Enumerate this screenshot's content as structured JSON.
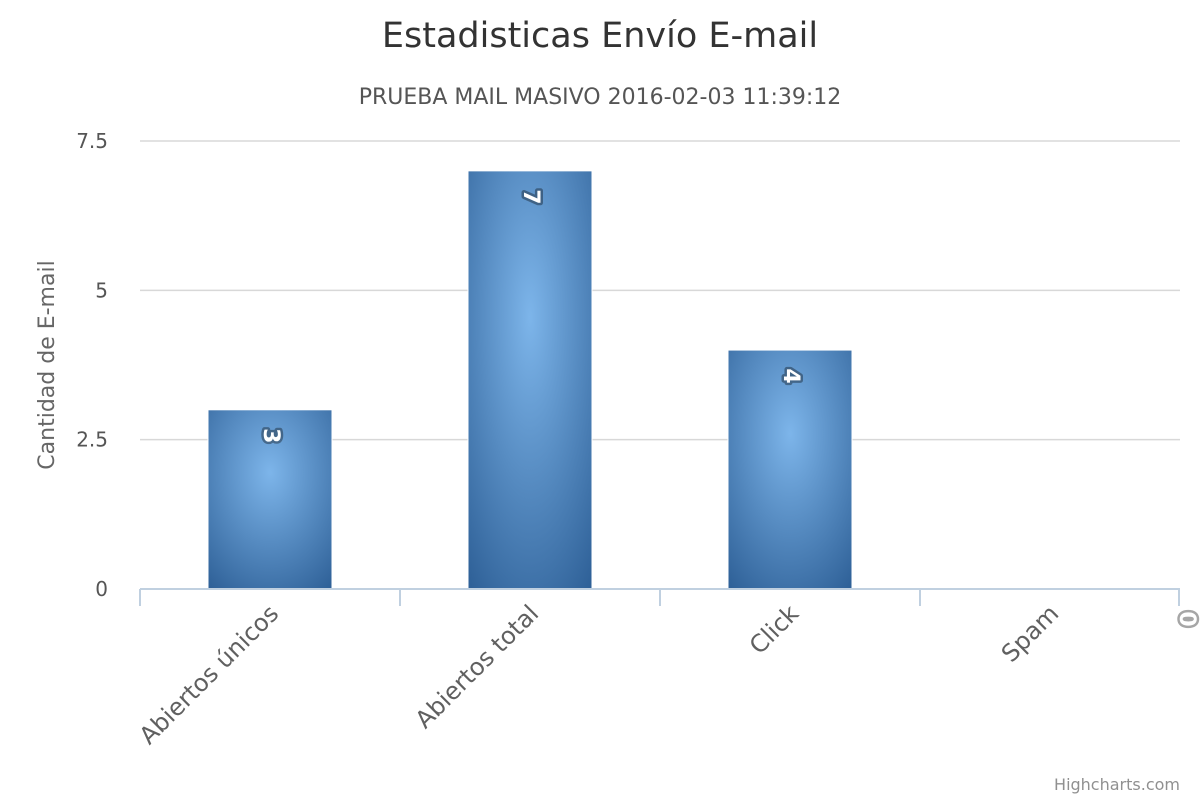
{
  "chart_data": {
    "type": "bar",
    "title": "Estadisticas Envío E-mail",
    "subtitle": "PRUEBA MAIL MASIVO 2016-02-03 11:39:12",
    "xlabel": "",
    "ylabel": "Cantidad de E-mail",
    "categories": [
      "Abiertos únicos",
      "Abiertos total",
      "Click",
      "Spam"
    ],
    "values": [
      3,
      7,
      4,
      0
    ],
    "ylim": [
      0,
      7.5
    ],
    "yticks": [
      0,
      2.5,
      5,
      7.5
    ],
    "ytick_labels": [
      "0",
      "2.5",
      "5",
      "7.5"
    ],
    "data_labels": [
      "3",
      "7",
      "4",
      "0"
    ],
    "grid": true,
    "legend": "none",
    "colors": {
      "bar_center": "#7db5ea",
      "bar_edge": "#2f6198",
      "grid": "#d8d8d8",
      "axis": "#c0d0e0"
    }
  },
  "credits": "Highcharts.com"
}
